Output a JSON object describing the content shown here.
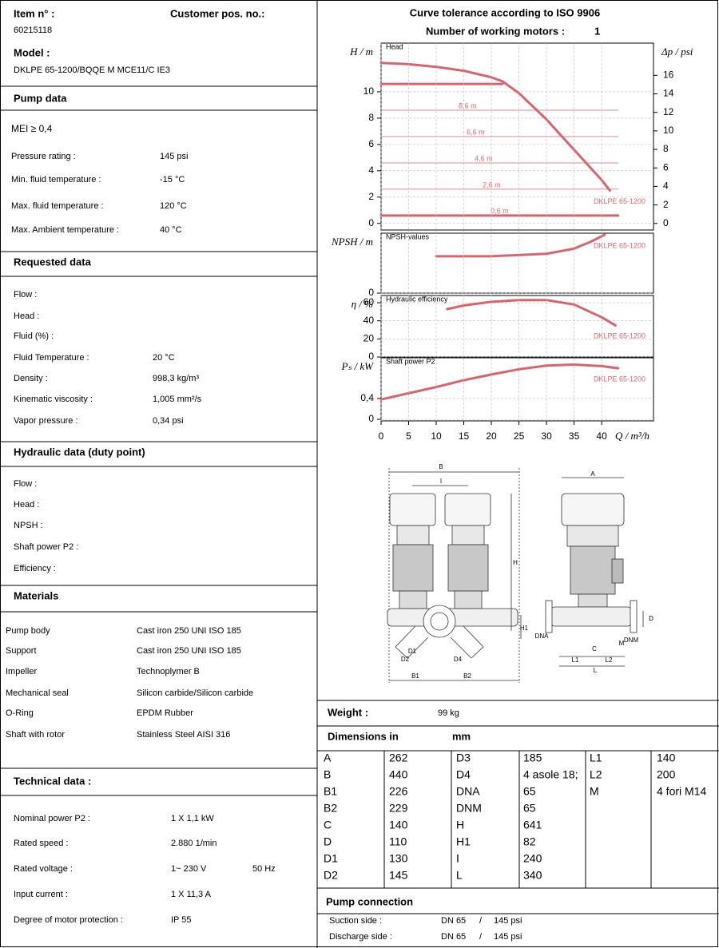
{
  "header": {
    "item_label": "Item n° :",
    "item": "60215118",
    "customer_label": "Customer pos. no.:",
    "model_label": "Model :",
    "model": "DKLPE 65-1200/BQQE M MCE11/C IE3"
  },
  "pump_data": {
    "title": "Pump data",
    "mei": "MEI  ≥  0,4",
    "rows": [
      [
        "Pressure rating :",
        "145 psi"
      ],
      [
        "Min. fluid temperature :",
        "-15 °C"
      ],
      [
        "Max. fluid temperature :",
        "120 °C"
      ],
      [
        "Max. Ambient temperature :",
        "40 °C"
      ]
    ]
  },
  "requested_data": {
    "title": "Requested data",
    "rows": [
      [
        "Flow :"
      ],
      [
        "Head :"
      ],
      [
        "Fluid (%) :"
      ],
      [
        "Fluid Temperature :",
        "20 °C"
      ],
      [
        " Density :",
        "998,3 kg/m³"
      ],
      [
        "Kinematic viscosity :",
        "1,005 mm²/s"
      ],
      [
        "Vapor pressure :",
        "0,34 psi"
      ]
    ]
  },
  "hydraulic_data": {
    "title": "Hydraulic data (duty point)",
    "rows": [
      [
        "Flow :"
      ],
      [
        "Head :"
      ],
      [
        "NPSH :"
      ],
      [
        "Shaft power P2 :"
      ],
      [
        "Efficiency :"
      ]
    ]
  },
  "materials": {
    "title": "Materials",
    "rows": [
      [
        "Pump body",
        "Cast iron 250 UNI ISO 185"
      ],
      [
        "Support",
        "Cast iron 250 UNI ISO 185"
      ],
      [
        "Impeller",
        "Technoplymer B"
      ],
      [
        "Mechanical seal",
        "Silicon carbide/Silicon carbide"
      ],
      [
        "O-Ring",
        " EPDM Rubber"
      ],
      [
        "Shaft with rotor",
        "Stainless Steel AISI 316"
      ]
    ]
  },
  "technical_data": {
    "title": "Technical data :",
    "rows": [
      [
        "Nominal power P2 :",
        "1  X    1,1 kW"
      ],
      [
        "Rated speed :",
        "2.880 1/min"
      ],
      [
        "Rated voltage :",
        "1~   230 V",
        "50 Hz"
      ],
      [
        "Input current :",
        "1  X    11,3 A"
      ],
      [
        "Degree of motor protection :",
        "IP 55"
      ]
    ]
  },
  "curves": {
    "title": "Curve tolerance according to ISO 9906",
    "motors_label": "Number of working motors :",
    "motors": "1"
  },
  "chart_data": [
    {
      "type": "line",
      "label": "Head",
      "ylabel": "H / m",
      "y2label": "Δp / psi",
      "xlim": [
        0,
        49.4
      ],
      "ylim": [
        -0.5,
        13.7
      ],
      "yticks": [
        0,
        2,
        4,
        6,
        8,
        10
      ],
      "y2lim": [
        -0.71,
        19.48
      ],
      "y2ticks": [
        0,
        2,
        4,
        6,
        8,
        10,
        12,
        14,
        16
      ],
      "series": [
        {
          "name": "DKLPE 65-1200",
          "color": "#d9646e",
          "width": 3,
          "x": [
            0,
            5,
            10,
            15,
            20,
            22,
            25,
            30,
            35,
            40,
            41.5
          ],
          "values": [
            12.2,
            12.1,
            11.9,
            11.6,
            11.1,
            10.8,
            9.9,
            7.9,
            5.6,
            3.3,
            2.5
          ]
        },
        {
          "color": "#d9646e",
          "width": 3,
          "x": [
            0,
            22
          ],
          "values": [
            10.6,
            10.6
          ]
        },
        {
          "name": "8,6 m",
          "color": "#d9646e",
          "width": 0.8,
          "x": [
            0,
            43
          ],
          "values": [
            8.6,
            8.6
          ]
        },
        {
          "name": "6,6 m",
          "color": "#d9646e",
          "width": 0.8,
          "x": [
            0,
            43
          ],
          "values": [
            6.6,
            6.6
          ]
        },
        {
          "name": "4,6 m",
          "color": "#d9646e",
          "width": 0.8,
          "x": [
            0,
            43
          ],
          "values": [
            4.6,
            4.6
          ]
        },
        {
          "name": "2,6 m",
          "color": "#d9646e",
          "width": 0.8,
          "x": [
            0,
            43
          ],
          "values": [
            2.6,
            2.6
          ]
        },
        {
          "name": "0,6 m",
          "color": "#d9646e",
          "width": 3,
          "x": [
            0,
            43
          ],
          "values": [
            0.6,
            0.6
          ]
        }
      ]
    },
    {
      "type": "line",
      "label": "NPSH-values",
      "ylabel": "NPSH / m",
      "xlim": [
        0,
        49.4
      ],
      "ylim": [
        0,
        7
      ],
      "yticks": [
        0
      ],
      "series": [
        {
          "name": "DKLPE 65-1200",
          "color": "#d9646e",
          "width": 3,
          "x": [
            10,
            20,
            30,
            35,
            38,
            40.5
          ],
          "values": [
            4.3,
            4.3,
            4.6,
            5.2,
            6.0,
            6.8
          ]
        }
      ]
    },
    {
      "type": "line",
      "label": "Hydraulic efficiency",
      "ylabel": "η / %",
      "xlim": [
        0,
        49.4
      ],
      "ylim": [
        0,
        68
      ],
      "yticks": [
        0,
        20,
        40,
        60
      ],
      "series": [
        {
          "name": "DKLPE 65-1200",
          "color": "#d9646e",
          "width": 3,
          "x": [
            12,
            15,
            20,
            25,
            30,
            35,
            40,
            42.5
          ],
          "values": [
            53,
            57,
            61,
            63,
            63,
            58,
            44,
            35
          ]
        }
      ]
    },
    {
      "type": "line",
      "label": "Shaft power P2",
      "ylabel": "Pₛ / kW",
      "xlim": [
        0,
        49.4
      ],
      "ylim": [
        -0.03,
        1.18
      ],
      "yticks": [
        0,
        {
          "value": 0.4,
          "label": "0,4"
        }
      ],
      "xticks": [
        0,
        5,
        10,
        15,
        20,
        25,
        30,
        35,
        40
      ],
      "xlabel": "Q / m³/h",
      "series": [
        {
          "name": "DKLPE 65-1200",
          "color": "#d9646e",
          "width": 3,
          "x": [
            0,
            5,
            10,
            15,
            20,
            25,
            30,
            35,
            40,
            43
          ],
          "values": [
            0.38,
            0.5,
            0.62,
            0.75,
            0.86,
            0.96,
            1.03,
            1.05,
            1.02,
            0.98
          ]
        }
      ]
    }
  ],
  "drawing": {
    "labels": [
      "B",
      "I",
      "H",
      "H1",
      "D1",
      "D2",
      "D4",
      "B1",
      "B2",
      "A",
      "DNA",
      "DNM",
      "D",
      "C",
      "M",
      "L1",
      "L2",
      "L"
    ]
  },
  "weight": {
    "label": "Weight :",
    "value": "99 kg"
  },
  "dimensions": {
    "label": "Dimensions in",
    "unit": "mm",
    "columns": [
      [
        [
          "A",
          "262"
        ],
        [
          "B",
          "440"
        ],
        [
          "B1",
          "226"
        ],
        [
          "B2",
          "229"
        ],
        [
          "C",
          "140"
        ],
        [
          "D",
          "110"
        ],
        [
          "D1",
          "130"
        ],
        [
          "D2",
          "145"
        ]
      ],
      [
        [
          "D3",
          "185"
        ],
        [
          "D4",
          "4 asole 18;"
        ],
        [
          "DNA",
          "65"
        ],
        [
          "DNM",
          "65"
        ],
        [
          "H",
          "641"
        ],
        [
          "H1",
          "82"
        ],
        [
          "I",
          "240"
        ],
        [
          "L",
          "340"
        ]
      ],
      [
        [
          "L1",
          "140"
        ],
        [
          "L2",
          "200"
        ],
        [
          "M",
          "4 fori M14"
        ]
      ]
    ]
  },
  "pump_connection": {
    "title": "Pump connection",
    "rows": [
      [
        "Suction side :",
        "DN 65",
        "/",
        "145 psi"
      ],
      [
        "Discharge side :",
        "DN 65",
        "/",
        "145 psi"
      ]
    ]
  }
}
